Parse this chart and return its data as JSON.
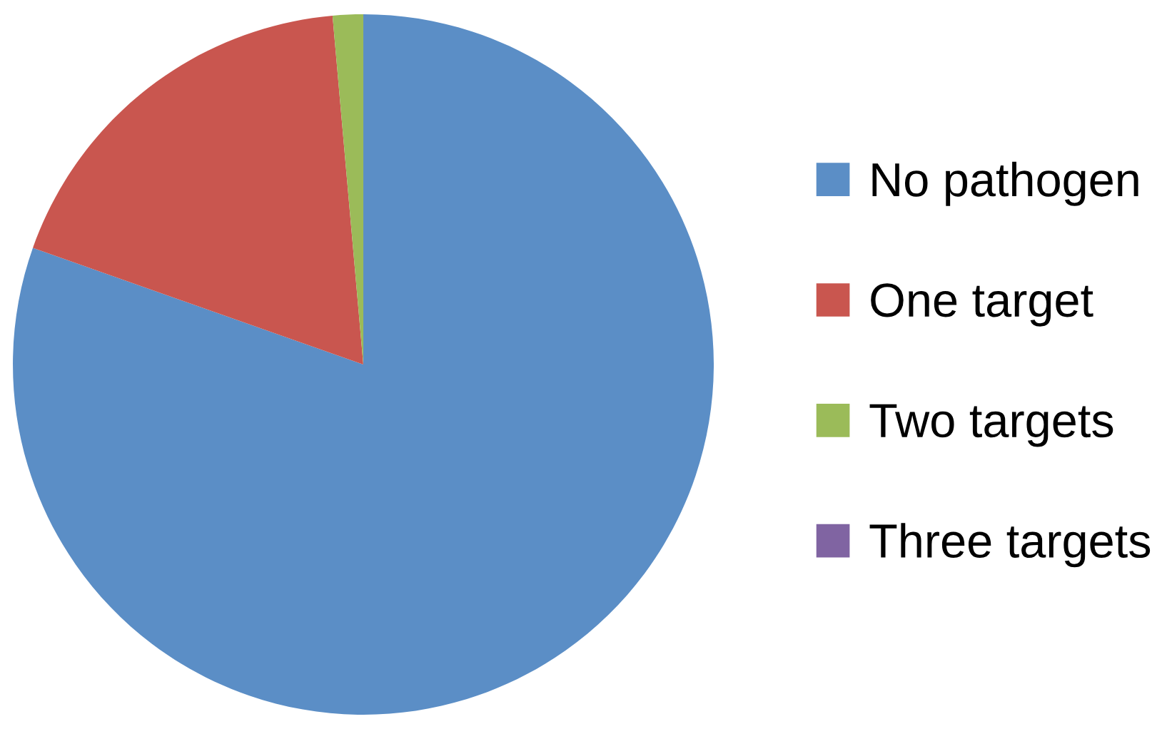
{
  "chart_data": {
    "type": "pie",
    "categories": [
      "No pathogen",
      "One target",
      "Two targets",
      "Three targets"
    ],
    "values": [
      80.4,
      18.2,
      1.4,
      0
    ],
    "colors": [
      "#5b8ec6",
      "#c9564f",
      "#9bbb59",
      "#8064a2"
    ],
    "legend": "right"
  }
}
